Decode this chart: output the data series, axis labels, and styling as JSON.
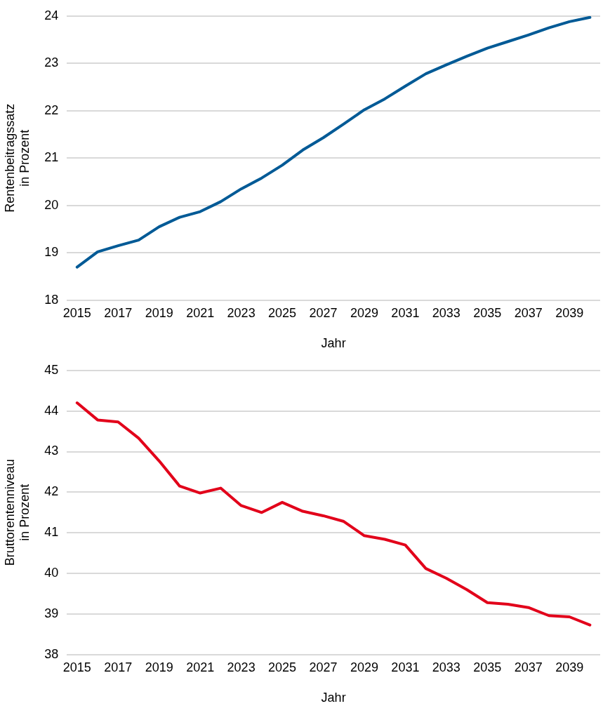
{
  "chart_data": [
    {
      "type": "line",
      "categories": [
        "2015",
        null,
        "2017",
        null,
        "2019",
        null,
        "2021",
        null,
        "2023",
        null,
        "2025",
        null,
        "2027",
        null,
        "2029",
        null,
        "2031",
        null,
        "2033",
        null,
        "2035",
        null,
        "2037",
        null,
        "2039",
        null
      ],
      "series": [
        {
          "color": "#005a96",
          "values": [
            18.7,
            19.02,
            19.15,
            19.27,
            19.55,
            19.75,
            19.87,
            20.08,
            20.35,
            20.58,
            20.85,
            21.17,
            21.43,
            21.72,
            22.02,
            22.25,
            22.52,
            22.78,
            22.97,
            23.15,
            23.32,
            23.46,
            23.6,
            23.75,
            23.88,
            23.97
          ]
        }
      ],
      "xlabel": "Jahr",
      "ylabel": "Rentenbeitragssatz\nin Prozent",
      "ylim": [
        18,
        24
      ],
      "yticks": [
        18,
        19,
        20,
        21,
        22,
        23,
        24
      ],
      "grid": "y",
      "legend": false,
      "marker": "none",
      "line_style": "solid"
    },
    {
      "type": "line",
      "categories": [
        "2015",
        null,
        "2017",
        null,
        "2019",
        null,
        "2021",
        null,
        "2023",
        null,
        "2025",
        null,
        "2027",
        null,
        "2029",
        null,
        "2031",
        null,
        "2033",
        null,
        "2035",
        null,
        "2037",
        null,
        "2039",
        null
      ],
      "series": [
        {
          "color": "#e2001a",
          "values": [
            44.2,
            43.78,
            43.73,
            43.33,
            42.77,
            42.15,
            41.98,
            42.1,
            41.67,
            41.5,
            41.75,
            41.53,
            41.42,
            41.28,
            40.93,
            40.84,
            40.7,
            40.12,
            39.88,
            39.6,
            39.28,
            39.24,
            39.16,
            38.96,
            38.93,
            38.73
          ]
        }
      ],
      "xlabel": "Jahr",
      "ylabel": "Bruttorentenniveau\nin Prozent",
      "ylim": [
        38,
        45
      ],
      "yticks": [
        38,
        39,
        40,
        41,
        42,
        43,
        44,
        45
      ],
      "grid": "y",
      "legend": false,
      "marker": "none",
      "line_style": "solid"
    }
  ]
}
